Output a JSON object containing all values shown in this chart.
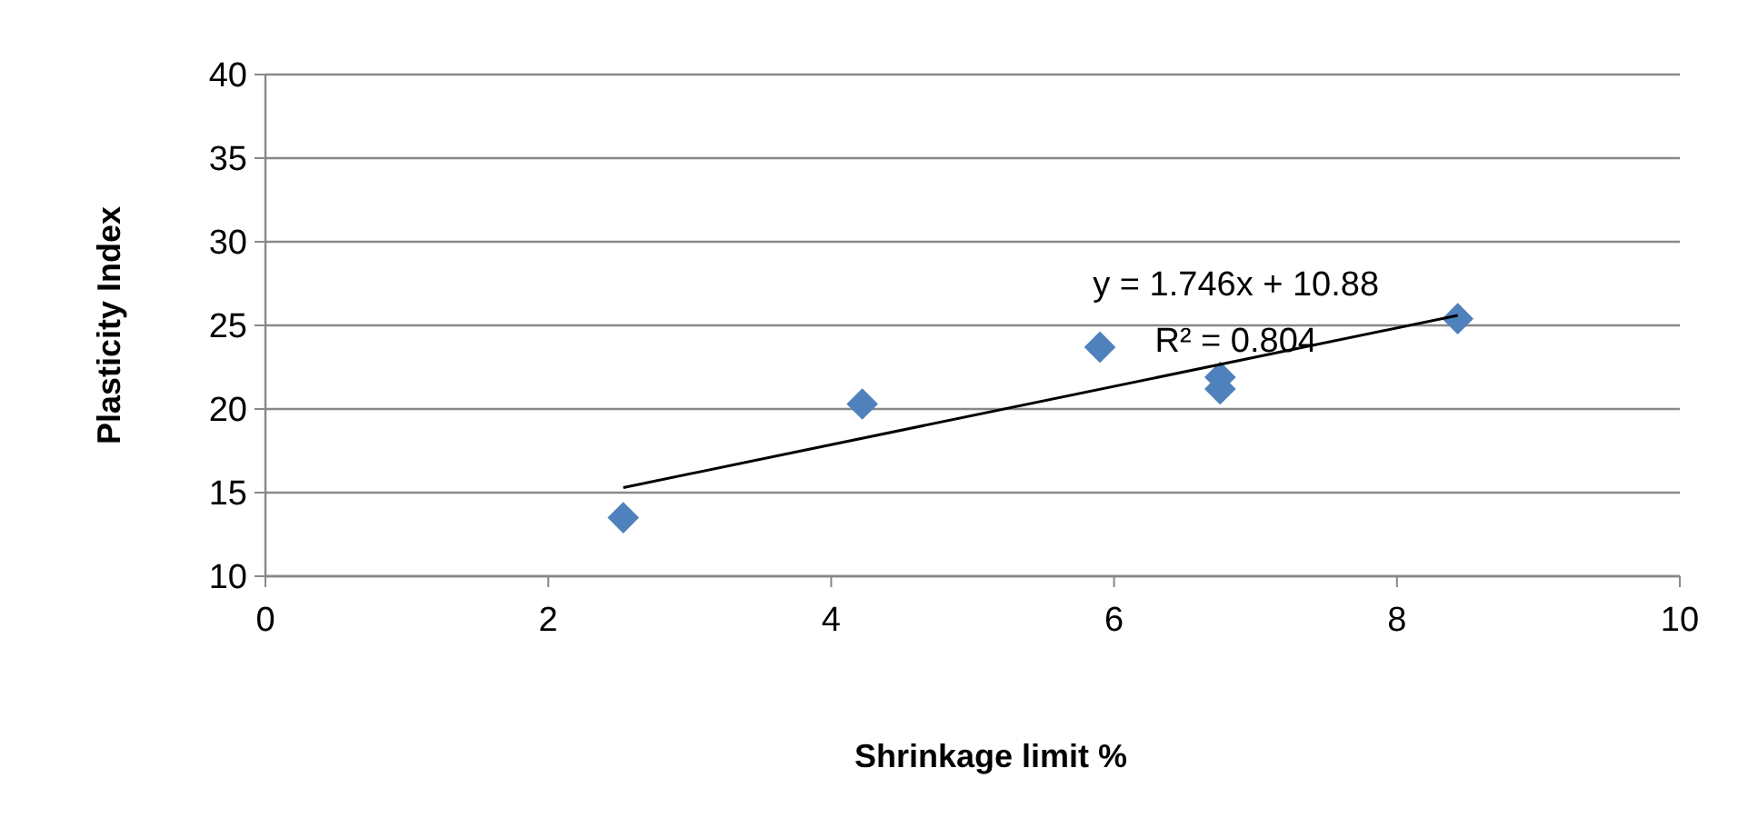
{
  "chart_data": {
    "type": "scatter",
    "xlabel": "Shrinkage limit %",
    "ylabel": "Plasticity Index",
    "xlim": [
      0,
      10
    ],
    "xticks": [
      0,
      2,
      4,
      6,
      8,
      10
    ],
    "ylim": [
      10,
      40
    ],
    "yticks": [
      10,
      15,
      20,
      25,
      30,
      35,
      40
    ],
    "grid": "y",
    "series": [
      {
        "marker": "diamond",
        "color": "#4f81bd",
        "x": [
          2.53,
          4.22,
          5.9,
          6.75,
          6.75,
          8.43
        ],
        "values": [
          13.5,
          20.3,
          23.7,
          21.9,
          21.2,
          25.4
        ]
      },
      {
        "type": "line",
        "color": "#000000",
        "x": [
          2.53,
          8.43
        ],
        "values": [
          15.3,
          25.6
        ]
      }
    ],
    "annotations": [
      "y = 1.746x + 10.88",
      "R² = 0.804"
    ]
  }
}
